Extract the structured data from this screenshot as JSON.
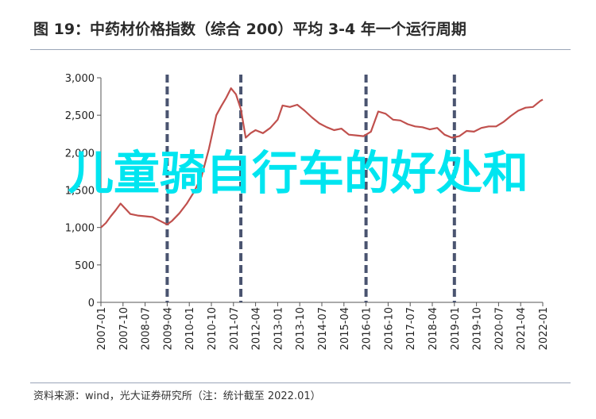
{
  "header": {
    "title": "图 19：中药材价格指数（综合 200）平均 3-4 年一个运行周期"
  },
  "footer": {
    "source": "资料来源：wind，光大证券研究所（注：统计截至 2022.01）"
  },
  "overlay_text": "儿童骑自行车的好处和",
  "colors": {
    "series": "#c0504d",
    "cycle_line": "#4a5470",
    "axis": "#555555",
    "overlay": "#00e5f0"
  },
  "chart_data": {
    "type": "line",
    "title": "图 19：中药材价格指数（综合 200）平均 3-4 年一个运行周期",
    "xlabel": "",
    "ylabel": "",
    "ylim": [
      0,
      3000
    ],
    "yticks": [
      0,
      500,
      1000,
      1500,
      2000,
      2500,
      3000
    ],
    "ytick_labels": [
      "0",
      "500",
      "1,000",
      "1,500",
      "2,000",
      "2,500",
      "3,000"
    ],
    "xlim": [
      "2007-01",
      "2022-01"
    ],
    "xtick_labels": [
      "2007-01",
      "2007-10",
      "2008-07",
      "2009-04",
      "2010-01",
      "2010-10",
      "2011-07",
      "2012-04",
      "2013-01",
      "2013-10",
      "2014-07",
      "2015-04",
      "2016-01",
      "2016-10",
      "2017-07",
      "2018-04",
      "2019-01",
      "2019-10",
      "2020-07",
      "2021-04",
      "2022-01"
    ],
    "grid": false,
    "cycle_markers": [
      "2009-04",
      "2011-10",
      "2016-01",
      "2019-01"
    ],
    "series": [
      {
        "name": "",
        "points": [
          [
            "2007-01",
            1000
          ],
          [
            "2007-03",
            1060
          ],
          [
            "2007-05",
            1150
          ],
          [
            "2007-07",
            1230
          ],
          [
            "2007-09",
            1320
          ],
          [
            "2007-11",
            1250
          ],
          [
            "2008-01",
            1180
          ],
          [
            "2008-04",
            1160
          ],
          [
            "2008-07",
            1150
          ],
          [
            "2008-10",
            1140
          ],
          [
            "2009-01",
            1090
          ],
          [
            "2009-04",
            1040
          ],
          [
            "2009-06",
            1090
          ],
          [
            "2009-09",
            1190
          ],
          [
            "2009-12",
            1320
          ],
          [
            "2010-03",
            1480
          ],
          [
            "2010-06",
            1680
          ],
          [
            "2010-09",
            2050
          ],
          [
            "2010-12",
            2500
          ],
          [
            "2011-02",
            2620
          ],
          [
            "2011-04",
            2730
          ],
          [
            "2011-06",
            2860
          ],
          [
            "2011-08",
            2780
          ],
          [
            "2011-10",
            2580
          ],
          [
            "2011-12",
            2200
          ],
          [
            "2012-02",
            2260
          ],
          [
            "2012-04",
            2300
          ],
          [
            "2012-07",
            2260
          ],
          [
            "2012-10",
            2330
          ],
          [
            "2013-01",
            2440
          ],
          [
            "2013-03",
            2630
          ],
          [
            "2013-06",
            2610
          ],
          [
            "2013-09",
            2640
          ],
          [
            "2013-12",
            2560
          ],
          [
            "2014-03",
            2470
          ],
          [
            "2014-06",
            2390
          ],
          [
            "2014-09",
            2340
          ],
          [
            "2014-12",
            2300
          ],
          [
            "2015-03",
            2320
          ],
          [
            "2015-06",
            2240
          ],
          [
            "2015-09",
            2230
          ],
          [
            "2015-12",
            2220
          ],
          [
            "2016-03",
            2280
          ],
          [
            "2016-06",
            2550
          ],
          [
            "2016-09",
            2520
          ],
          [
            "2016-12",
            2440
          ],
          [
            "2017-03",
            2430
          ],
          [
            "2017-06",
            2380
          ],
          [
            "2017-09",
            2350
          ],
          [
            "2017-12",
            2340
          ],
          [
            "2018-03",
            2310
          ],
          [
            "2018-06",
            2330
          ],
          [
            "2018-09",
            2240
          ],
          [
            "2018-12",
            2200
          ],
          [
            "2019-03",
            2220
          ],
          [
            "2019-06",
            2290
          ],
          [
            "2019-09",
            2280
          ],
          [
            "2019-12",
            2330
          ],
          [
            "2020-03",
            2350
          ],
          [
            "2020-06",
            2350
          ],
          [
            "2020-09",
            2410
          ],
          [
            "2020-12",
            2490
          ],
          [
            "2021-03",
            2560
          ],
          [
            "2021-06",
            2600
          ],
          [
            "2021-09",
            2610
          ],
          [
            "2021-12",
            2690
          ],
          [
            "2022-01",
            2710
          ]
        ]
      }
    ]
  }
}
